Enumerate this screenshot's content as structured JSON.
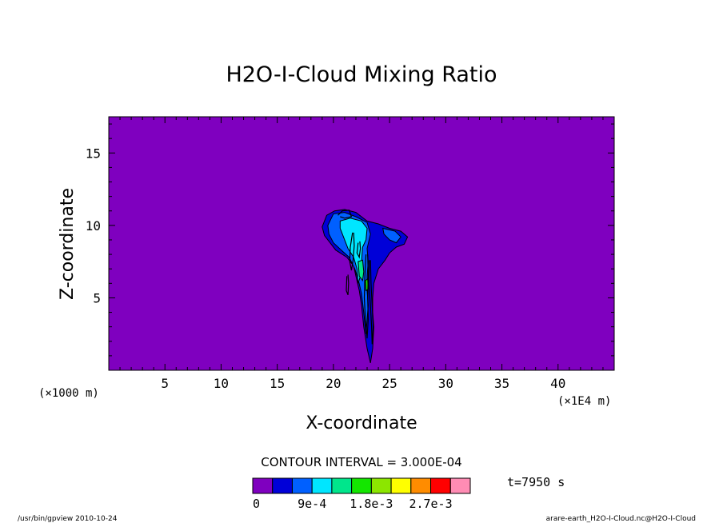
{
  "chart_data": {
    "type": "contour",
    "title": "H2O-I-Cloud Mixing Ratio",
    "xlabel": "X-coordinate",
    "ylabel": "Z-coordinate",
    "x_unit": "(×1000 m)",
    "x_scale_note": "(×1E4 m)",
    "xlim": [
      0,
      45
    ],
    "ylim": [
      0,
      17.5
    ],
    "x_ticks": [
      5,
      10,
      15,
      20,
      25,
      30,
      35,
      40
    ],
    "y_ticks": [
      5,
      10,
      15
    ],
    "contour_interval_label": "CONTOUR INTERVAL = 3.000E-04",
    "time_label": "t=7950 s",
    "colorbar": {
      "colors": [
        "#7f00bf",
        "#0000d8",
        "#0060ff",
        "#00e6ff",
        "#00e68c",
        "#14e600",
        "#8ce600",
        "#ffff00",
        "#ff8c00",
        "#ff0000",
        "#ff8cb4"
      ],
      "tick_labels": [
        "0",
        "9e-4",
        "1.8e-3",
        "2.7e-3"
      ],
      "tick_positions": [
        0,
        3,
        6,
        9
      ]
    },
    "background_color": "#7f00bf",
    "cloud_regions": [
      {
        "level": 1,
        "color": "#0000d8",
        "points": [
          [
            19.0,
            9.9
          ],
          [
            19.4,
            10.7
          ],
          [
            20.1,
            11.0
          ],
          [
            21.0,
            11.1
          ],
          [
            22.0,
            10.9
          ],
          [
            23.0,
            10.3
          ],
          [
            24.0,
            10.1
          ],
          [
            25.0,
            9.8
          ],
          [
            26.0,
            9.6
          ],
          [
            26.6,
            9.2
          ],
          [
            26.3,
            8.7
          ],
          [
            25.6,
            8.5
          ],
          [
            25.0,
            8.1
          ],
          [
            24.6,
            7.6
          ],
          [
            24.0,
            7.0
          ],
          [
            23.6,
            6.0
          ],
          [
            23.5,
            5.0
          ],
          [
            23.5,
            4.0
          ],
          [
            23.6,
            3.0
          ],
          [
            23.5,
            1.5
          ],
          [
            23.3,
            0.5
          ],
          [
            23.0,
            1.5
          ],
          [
            22.7,
            3.0
          ],
          [
            22.5,
            4.5
          ],
          [
            22.3,
            5.5
          ],
          [
            22.0,
            6.5
          ],
          [
            21.8,
            7.2
          ],
          [
            21.2,
            7.8
          ],
          [
            20.2,
            8.3
          ],
          [
            19.7,
            8.8
          ],
          [
            19.2,
            9.3
          ]
        ]
      },
      {
        "level": 2,
        "color": "#0060ff",
        "points": [
          [
            19.5,
            10.0
          ],
          [
            20.0,
            10.8
          ],
          [
            21.0,
            10.9
          ],
          [
            22.0,
            10.6
          ],
          [
            23.0,
            10.2
          ],
          [
            23.3,
            9.4
          ],
          [
            23.0,
            8.4
          ],
          [
            23.1,
            7.5
          ],
          [
            23.0,
            6.5
          ],
          [
            23.0,
            5.5
          ],
          [
            23.1,
            4.5
          ],
          [
            23.0,
            3.5
          ],
          [
            22.9,
            2.5
          ],
          [
            22.7,
            4.0
          ],
          [
            22.5,
            5.3
          ],
          [
            22.2,
            6.3
          ],
          [
            21.9,
            7.0
          ],
          [
            21.4,
            7.8
          ],
          [
            20.7,
            8.3
          ],
          [
            20.0,
            8.8
          ],
          [
            19.6,
            9.4
          ]
        ]
      },
      {
        "level": 2,
        "color": "#0060ff",
        "points": [
          [
            24.4,
            9.8
          ],
          [
            25.5,
            9.6
          ],
          [
            26.0,
            9.2
          ],
          [
            25.6,
            8.8
          ],
          [
            25.0,
            9.0
          ],
          [
            24.5,
            9.4
          ]
        ]
      },
      {
        "level": 3,
        "color": "#00e6ff",
        "points": [
          [
            20.6,
            10.3
          ],
          [
            21.5,
            10.5
          ],
          [
            22.5,
            10.3
          ],
          [
            23.0,
            9.8
          ],
          [
            22.9,
            9.0
          ],
          [
            22.6,
            8.5
          ],
          [
            22.5,
            7.5
          ],
          [
            22.4,
            6.5
          ],
          [
            22.2,
            6.0
          ],
          [
            22.1,
            7.0
          ],
          [
            21.8,
            7.8
          ],
          [
            21.3,
            8.4
          ],
          [
            20.9,
            9.2
          ],
          [
            20.6,
            9.8
          ]
        ]
      },
      {
        "level": 4,
        "color": "#00e68c",
        "points": [
          [
            22.2,
            7.5
          ],
          [
            22.6,
            7.6
          ],
          [
            22.7,
            6.8
          ],
          [
            22.6,
            6.2
          ],
          [
            22.3,
            6.5
          ]
        ]
      },
      {
        "level": 5,
        "color": "#14e600",
        "points": [
          [
            22.85,
            6.2
          ],
          [
            23.05,
            6.3
          ],
          [
            23.1,
            5.6
          ],
          [
            22.9,
            5.5
          ]
        ]
      }
    ],
    "contour_lines": [
      [
        [
          22.9,
          8.0
        ],
        [
          22.8,
          6.5
        ],
        [
          22.75,
          5.0
        ],
        [
          22.85,
          3.5
        ],
        [
          23.0,
          2.2
        ],
        [
          23.1,
          3.5
        ],
        [
          23.05,
          5.0
        ],
        [
          23.1,
          6.5
        ],
        [
          23.05,
          8.0
        ]
      ],
      [
        [
          23.2,
          7.6
        ],
        [
          23.15,
          6.0
        ],
        [
          23.3,
          4.5
        ],
        [
          23.4,
          3.0
        ],
        [
          23.45,
          1.8
        ],
        [
          23.55,
          3.0
        ],
        [
          23.45,
          4.5
        ],
        [
          23.35,
          6.0
        ],
        [
          23.3,
          7.6
        ]
      ],
      [
        [
          21.7,
          9.5
        ],
        [
          21.5,
          8.5
        ],
        [
          21.45,
          7.5
        ],
        [
          21.6,
          6.9
        ],
        [
          21.75,
          7.6
        ],
        [
          21.85,
          8.6
        ],
        [
          21.8,
          9.5
        ]
      ],
      [
        [
          21.2,
          6.5
        ],
        [
          21.15,
          5.5
        ],
        [
          21.3,
          5.2
        ],
        [
          21.35,
          6.0
        ],
        [
          21.3,
          6.6
        ]
      ],
      [
        [
          22.2,
          8.8
        ],
        [
          22.1,
          8.1
        ],
        [
          22.3,
          7.8
        ],
        [
          22.4,
          8.4
        ],
        [
          22.35,
          8.9
        ]
      ],
      [
        [
          20.4,
          10.7
        ],
        [
          20.8,
          11.0
        ],
        [
          21.4,
          11.05
        ],
        [
          21.6,
          10.6
        ],
        [
          21.0,
          10.5
        ],
        [
          20.6,
          10.6
        ]
      ]
    ]
  },
  "footer": {
    "left": "/usr/bin/gpview  2010-10-24",
    "right": "arare-earth_H2O-I-Cloud.nc@H2O-I-Cloud"
  }
}
